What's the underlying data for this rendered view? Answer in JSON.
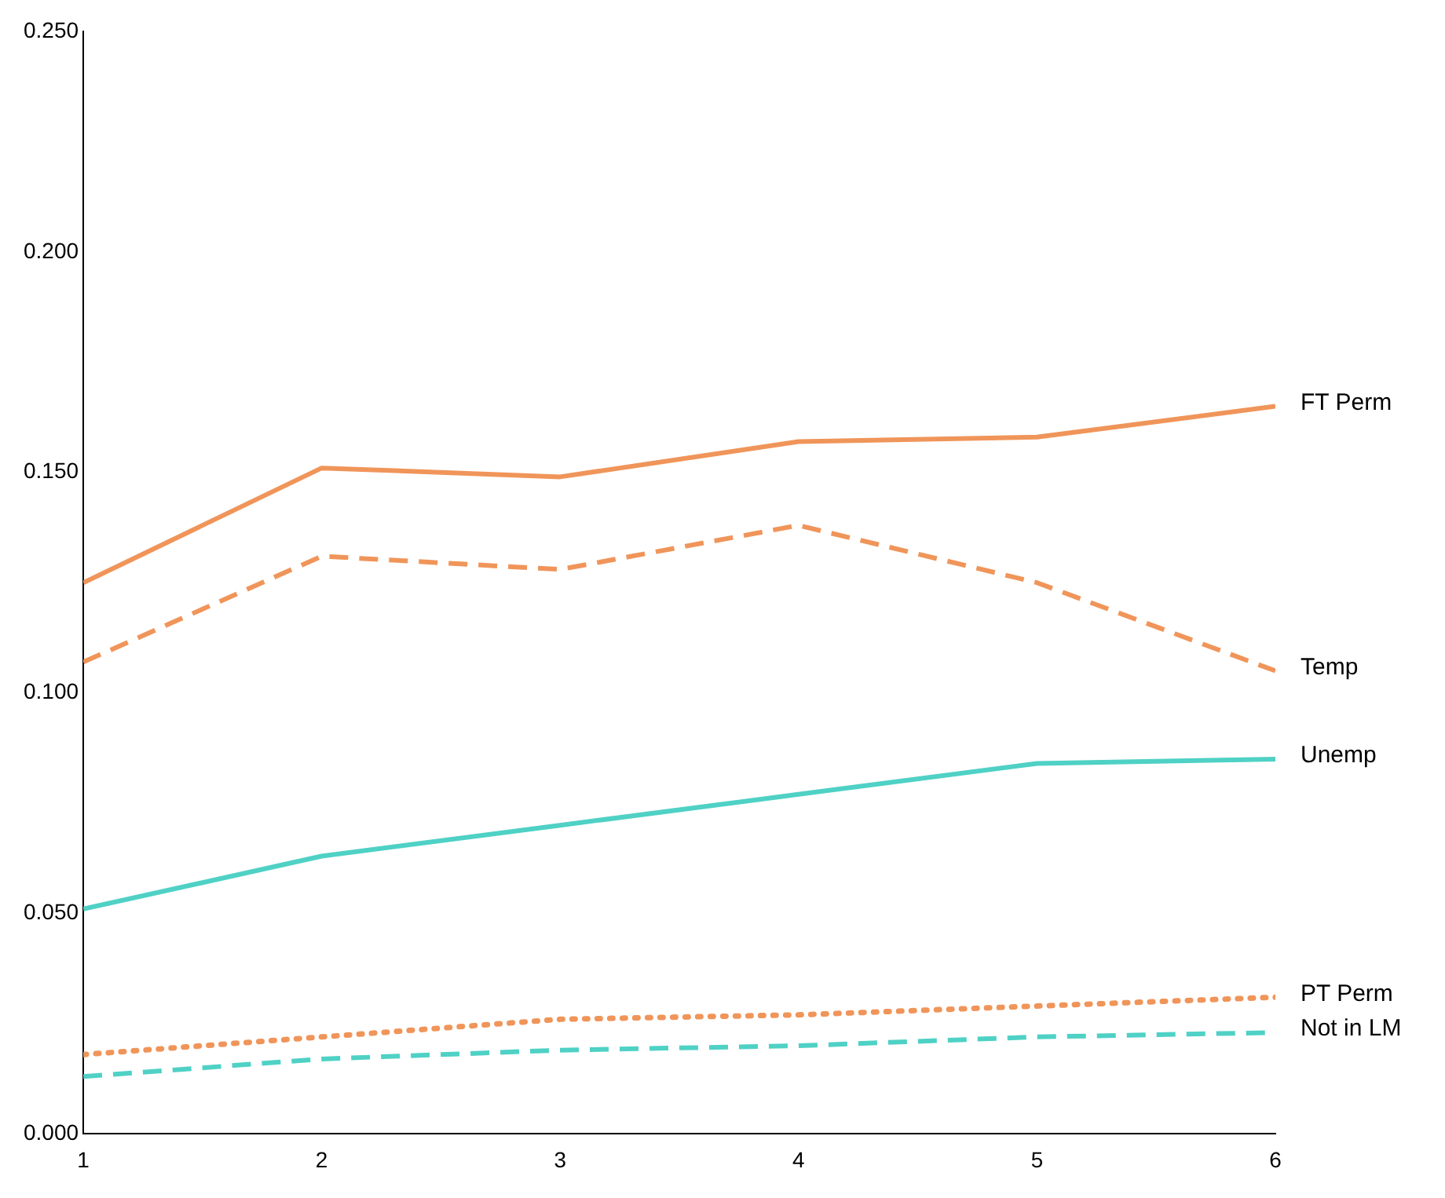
{
  "chart_data": {
    "type": "line",
    "x": [
      1,
      2,
      3,
      4,
      5,
      6
    ],
    "xlim": [
      1,
      6
    ],
    "xticks": [
      1,
      2,
      3,
      4,
      5,
      6
    ],
    "ylim": [
      0,
      0.25
    ],
    "yticks": [
      {
        "value": 0,
        "label": "0.000"
      },
      {
        "value": 0.05,
        "label": "0.050"
      },
      {
        "value": 0.1,
        "label": "0.100"
      },
      {
        "value": 0.15,
        "label": "0.150"
      },
      {
        "value": 0.2,
        "label": "0.200"
      },
      {
        "value": 0.25,
        "label": "0.250"
      }
    ],
    "grid": false,
    "legend": false,
    "marker": "none",
    "series": [
      {
        "name": "FT Perm",
        "color": "#f0955a",
        "line_style": "solid",
        "values": [
          0.125,
          0.151,
          0.149,
          0.157,
          0.158,
          0.165
        ]
      },
      {
        "name": "Temp",
        "color": "#f0955a",
        "line_style": "dashed",
        "values": [
          0.107,
          0.131,
          0.128,
          0.138,
          0.125,
          0.105
        ]
      },
      {
        "name": "Unemp",
        "color": "#4fd1c5",
        "line_style": "solid",
        "values": [
          0.051,
          0.063,
          0.07,
          0.077,
          0.084,
          0.085
        ]
      },
      {
        "name": "PT Perm",
        "color": "#f0955a",
        "line_style": "dotted",
        "values": [
          0.018,
          0.022,
          0.026,
          0.027,
          0.029,
          0.031
        ]
      },
      {
        "name": "Not in LM",
        "color": "#4fd1c5",
        "line_style": "dashed",
        "values": [
          0.013,
          0.017,
          0.019,
          0.02,
          0.022,
          0.023
        ]
      }
    ]
  }
}
